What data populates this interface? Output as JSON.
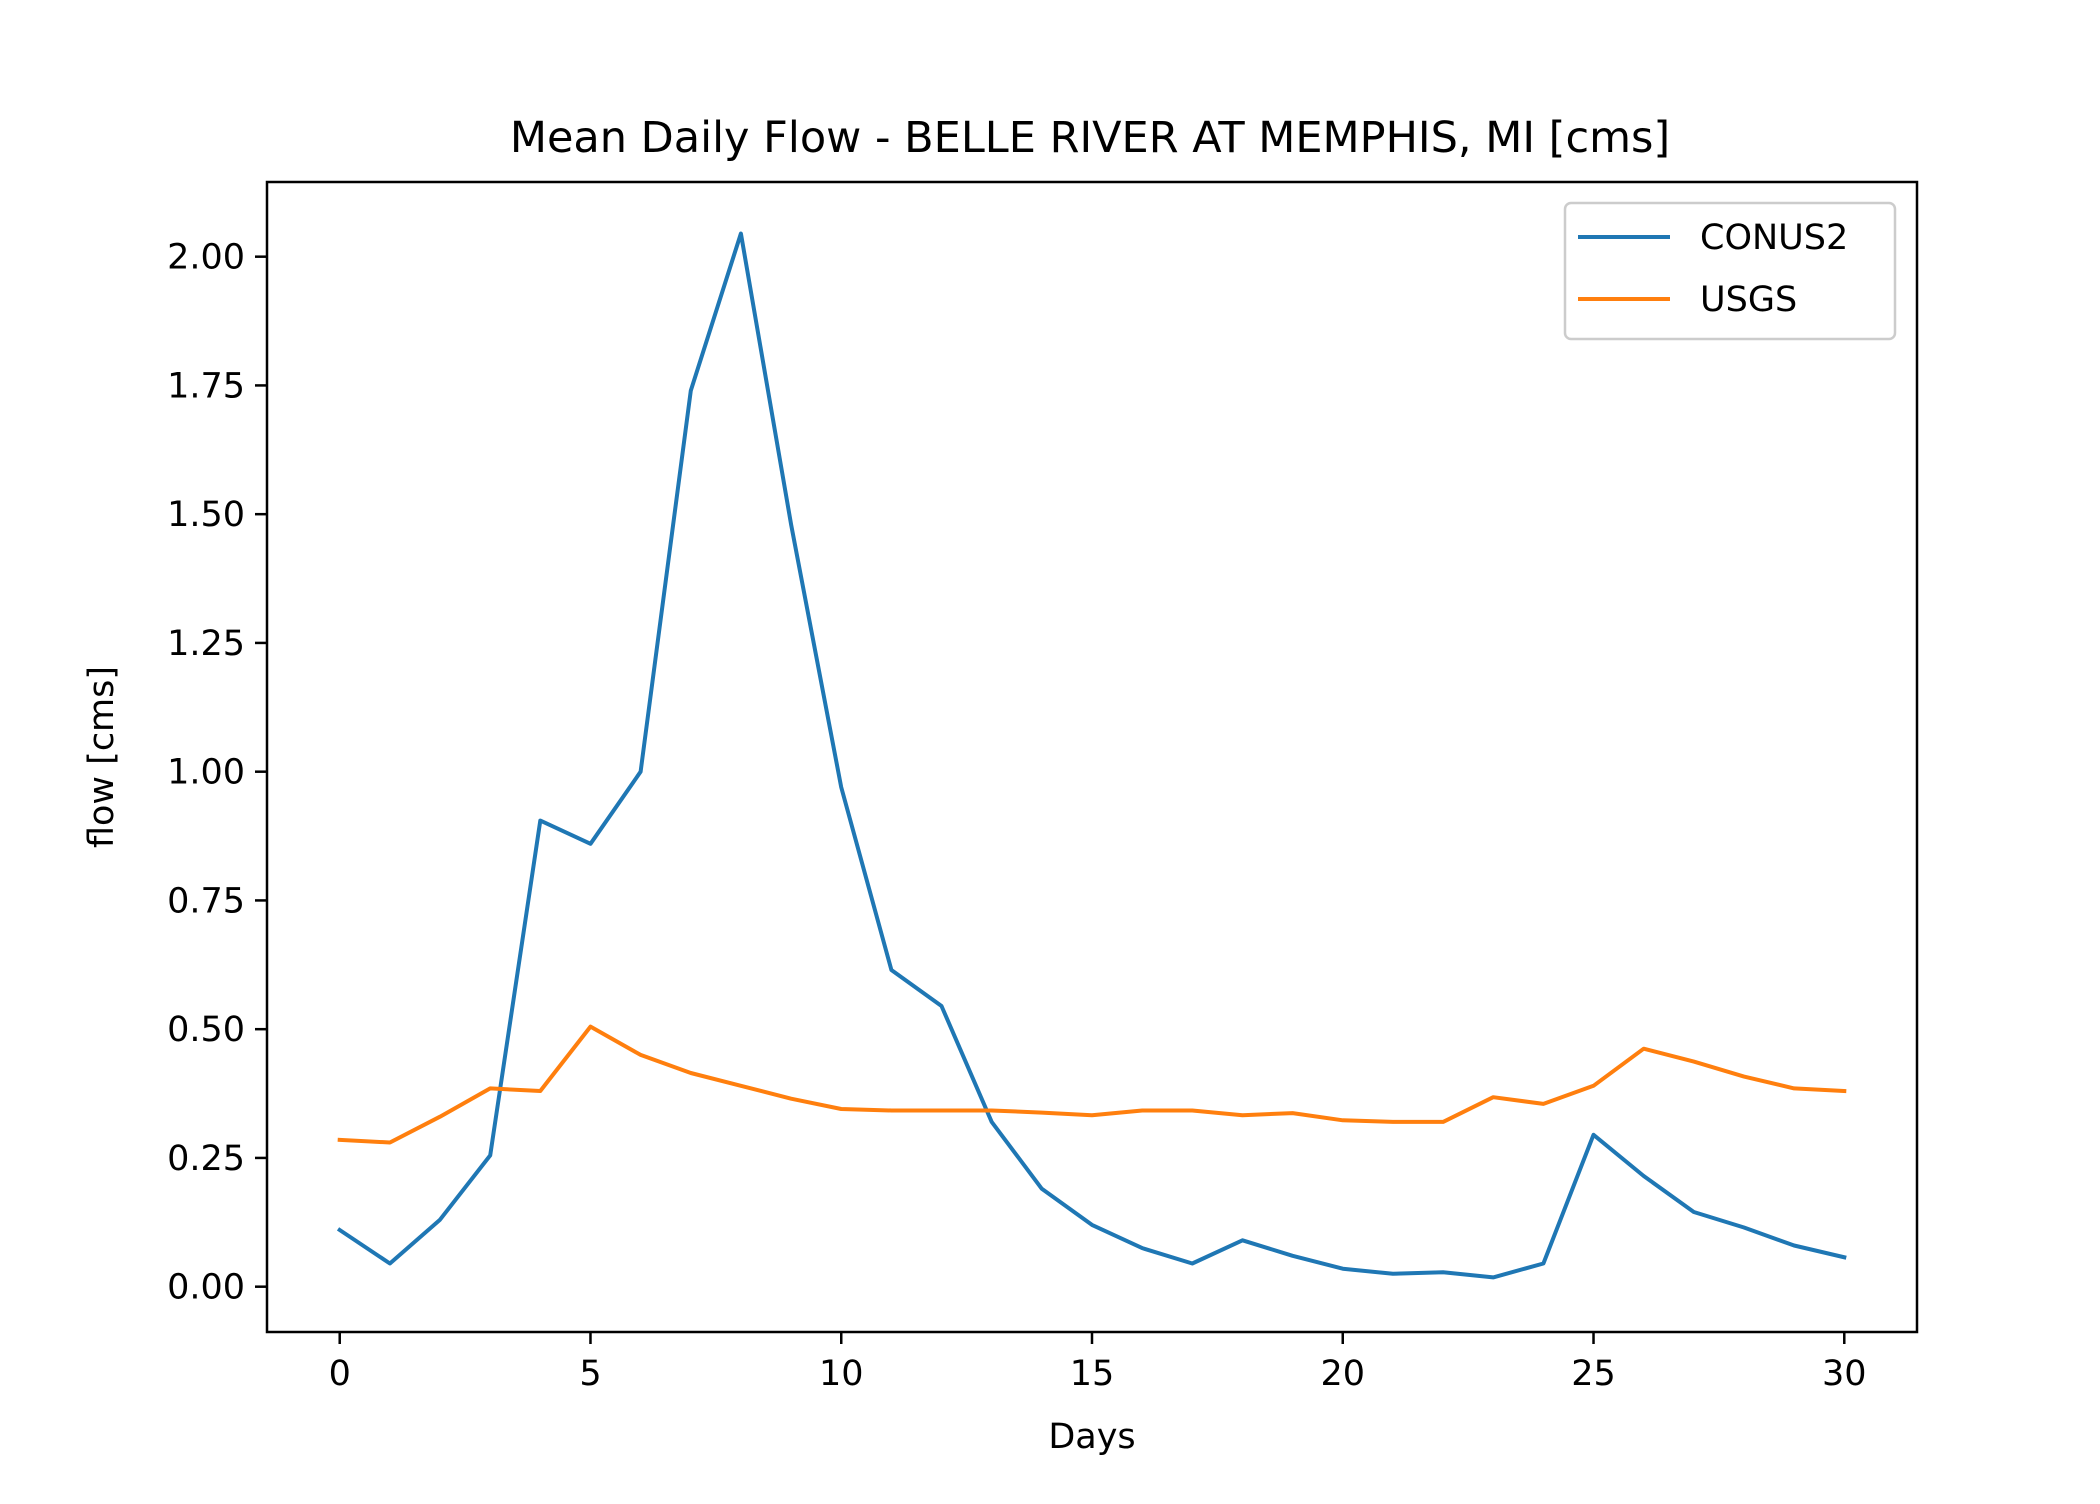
{
  "chart_data": {
    "type": "line",
    "title": "Mean Daily Flow - BELLE RIVER AT MEMPHIS, MI [cms]",
    "xlabel": "Days",
    "ylabel": "flow [cms]",
    "xlim": [
      -1.45,
      31.45
    ],
    "ylim": [
      -0.088,
      2.145
    ],
    "x_ticks": [
      0,
      5,
      10,
      15,
      20,
      25,
      30
    ],
    "x_tick_labels": [
      "0",
      "5",
      "10",
      "15",
      "20",
      "25",
      "30"
    ],
    "y_ticks": [
      0,
      0.25,
      0.5,
      0.75,
      1.0,
      1.25,
      1.5,
      1.75,
      2.0
    ],
    "y_tick_labels": [
      "0.00",
      "0.25",
      "0.50",
      "0.75",
      "1.00",
      "1.25",
      "1.50",
      "1.75",
      "2.00"
    ],
    "grid": false,
    "legend_position": "top-right",
    "x": [
      0,
      1,
      2,
      3,
      4,
      5,
      6,
      7,
      8,
      9,
      10,
      11,
      12,
      13,
      14,
      15,
      16,
      17,
      18,
      19,
      20,
      21,
      22,
      23,
      24,
      25,
      26,
      27,
      28,
      29,
      30
    ],
    "series": [
      {
        "name": "CONUS2",
        "color": "#1f77b4",
        "values": [
          0.11,
          0.045,
          0.13,
          0.255,
          0.905,
          0.86,
          1.0,
          1.74,
          2.045,
          1.48,
          0.97,
          0.615,
          0.545,
          0.32,
          0.19,
          0.12,
          0.075,
          0.045,
          0.09,
          0.06,
          0.035,
          0.025,
          0.028,
          0.018,
          0.045,
          0.295,
          0.215,
          0.145,
          0.115,
          0.08,
          0.057
        ]
      },
      {
        "name": "USGS",
        "color": "#ff7f0e",
        "values": [
          0.285,
          0.28,
          0.33,
          0.385,
          0.38,
          0.505,
          0.45,
          0.415,
          0.39,
          0.365,
          0.345,
          0.342,
          0.342,
          0.342,
          0.338,
          0.333,
          0.342,
          0.342,
          0.333,
          0.337,
          0.323,
          0.32,
          0.32,
          0.368,
          0.355,
          0.39,
          0.462,
          0.437,
          0.408,
          0.385,
          0.38
        ]
      }
    ]
  }
}
